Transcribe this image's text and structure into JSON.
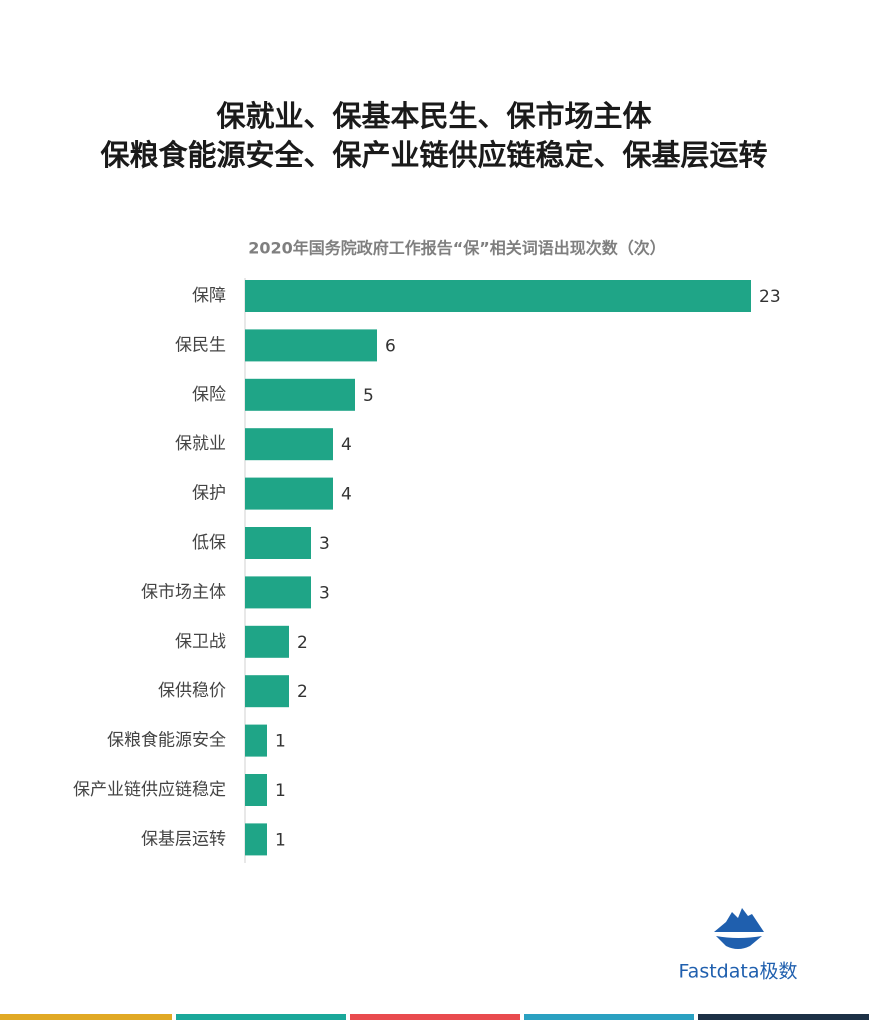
{
  "chart_data": {
    "type": "bar",
    "orientation": "horizontal",
    "title": [
      "保就业、保基本民生、保市场主体",
      "保粮食能源安全、保产业链供应链稳定、保基层运转"
    ],
    "subtitle": "2020年国务院政府工作报告“保”相关词语出现次数（次）",
    "categories": [
      "保障",
      "保民生",
      "保险",
      "保就业",
      "保护",
      "低保",
      "保市场主体",
      "保卫战",
      "保供稳价",
      "保粮食能源安全",
      "保产业链供应链稳定",
      "保基层运转"
    ],
    "values": [
      23,
      6,
      5,
      4,
      4,
      3,
      3,
      2,
      2,
      1,
      1,
      1
    ],
    "color": "#1fa587",
    "source": "Fastdata极数"
  }
}
